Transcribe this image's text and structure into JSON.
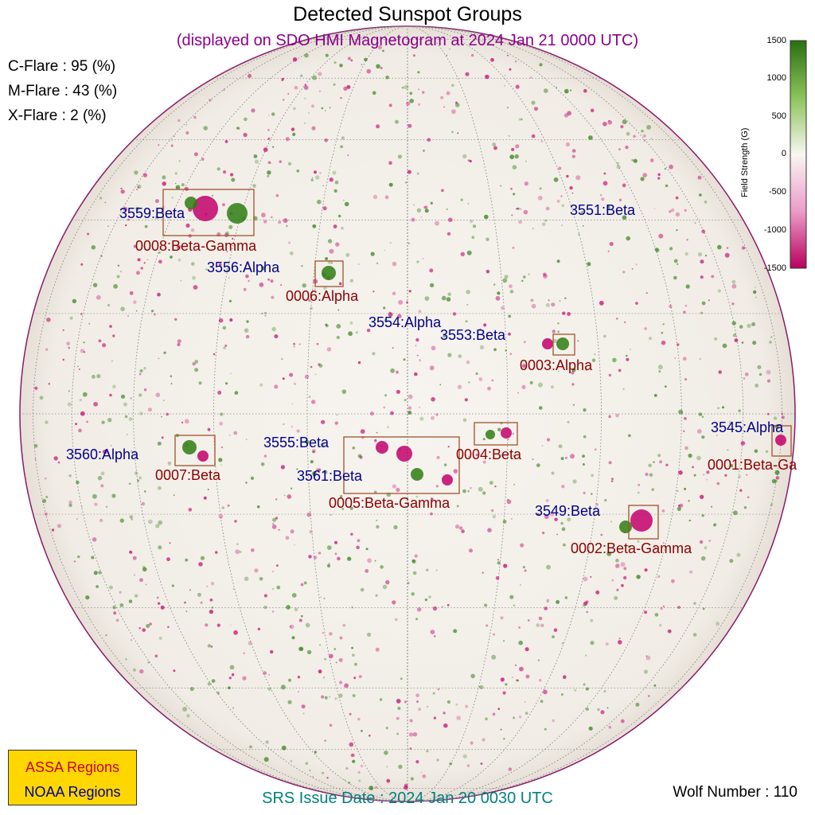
{
  "header": {
    "title": "Detected Sunspot Groups",
    "subtitle": "(displayed on SDO HMI Magnetogram at 2024 Jan 21 0000 UTC)"
  },
  "flares": {
    "c": "C-Flare : 95 (%)",
    "m": "M-Flare : 43 (%)",
    "x": "X-Flare :  2 (%)"
  },
  "colorbar": {
    "title": "Field Strength (G)",
    "ticks": [
      "1500",
      "1000",
      "500",
      "0",
      "-500",
      "-1000",
      "-1500"
    ],
    "colors": {
      "positive": "#2e7d12",
      "negative": "#c2006b",
      "neutral": "#f7f3ee"
    }
  },
  "regions": {
    "noaa": [
      {
        "label": "3559:Beta"
      },
      {
        "label": "3556:Alpha"
      },
      {
        "label": "3551:Beta"
      },
      {
        "label": "3554:Alpha"
      },
      {
        "label": "3553:Beta"
      },
      {
        "label": "3560:Alpha"
      },
      {
        "label": "3555:Beta"
      },
      {
        "label": "3561:Beta"
      },
      {
        "label": "3549:Beta"
      },
      {
        "label": "3545:Alpha"
      }
    ],
    "assa": [
      {
        "label": "0008:Beta-Gamma"
      },
      {
        "label": "0006:Alpha"
      },
      {
        "label": "0003:Alpha"
      },
      {
        "label": "0007:Beta"
      },
      {
        "label": "0004:Beta"
      },
      {
        "label": "0005:Beta-Gamma"
      },
      {
        "label": "0002:Beta-Gamma"
      },
      {
        "label": "0001:Beta-Ga"
      }
    ]
  },
  "legend": {
    "assa": "ASSA Regions",
    "noaa": "NOAA Regions"
  },
  "footer": {
    "srs": "SRS Issue Date : 2024 Jan 20 0030 UTC",
    "wolf": "Wolf Number : 110"
  }
}
